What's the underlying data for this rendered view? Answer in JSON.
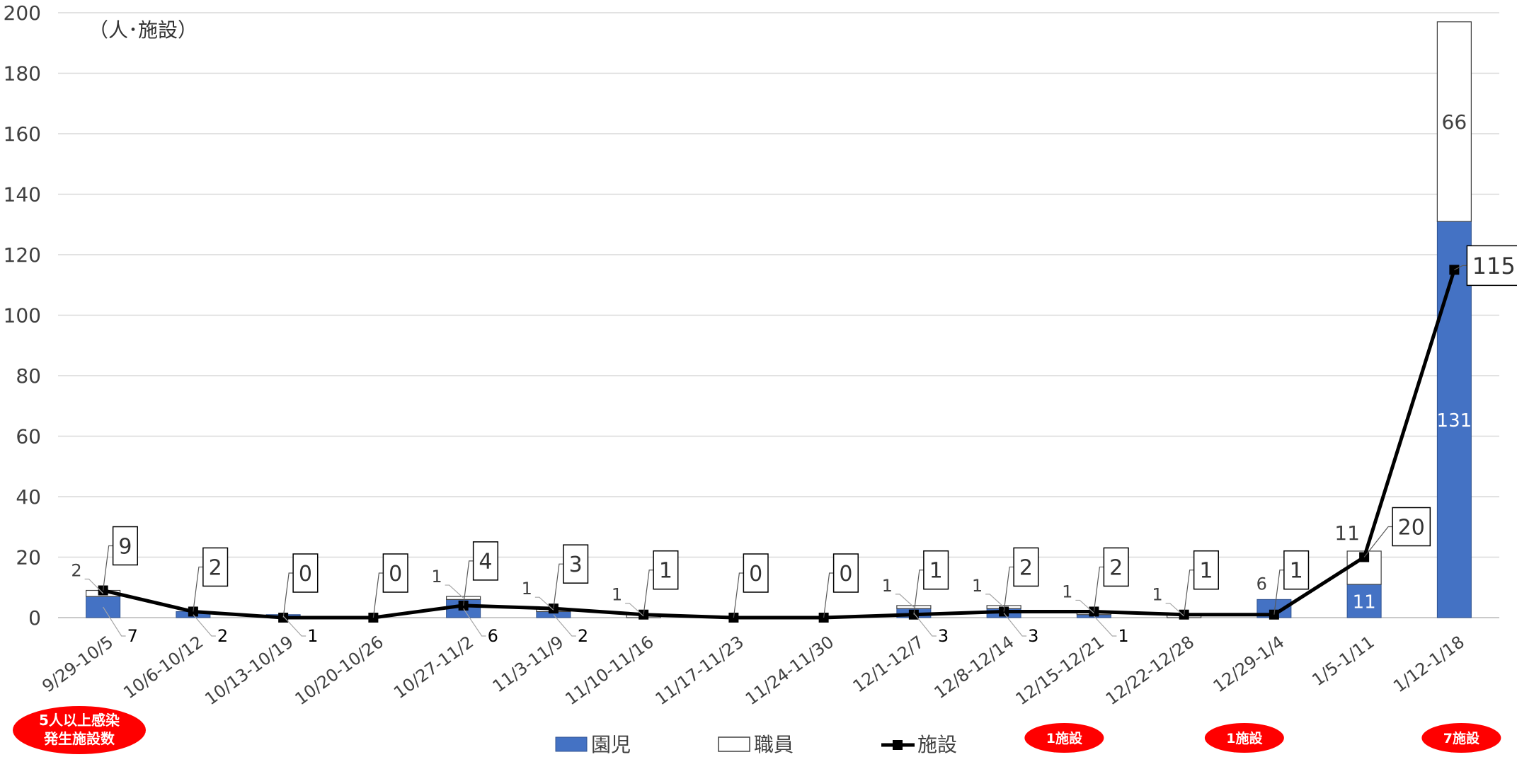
{
  "chart_data": {
    "type": "bar",
    "title": "",
    "unit_label": "（人･施設）",
    "xlabel": "",
    "ylabel": "",
    "ylim": [
      0,
      200
    ],
    "yticks": [
      0,
      20,
      40,
      60,
      80,
      100,
      120,
      140,
      160,
      180,
      200
    ],
    "grid": true,
    "legend_position": "bottom",
    "categories": [
      "9/29-10/5",
      "10/6-10/12",
      "10/13-10/19",
      "10/20-10/26",
      "10/27-11/2",
      "11/3-11/9",
      "11/10-11/16",
      "11/17-11/23",
      "11/24-11/30",
      "12/1-12/7",
      "12/8-12/14",
      "12/15-12/21",
      "12/22-12/28",
      "12/29-1/4",
      "1/5-1/11",
      "1/12-1/18"
    ],
    "series": [
      {
        "name": "園児",
        "type": "stacked-bar",
        "color": "#4472C4",
        "values": [
          7,
          2,
          1,
          0,
          6,
          2,
          0,
          0,
          0,
          3,
          3,
          1,
          0,
          6,
          11,
          131
        ]
      },
      {
        "name": "職員",
        "type": "stacked-bar",
        "color": "#FFFFFF",
        "values": [
          2,
          0,
          0,
          0,
          1,
          1,
          1,
          0,
          0,
          1,
          1,
          1,
          1,
          0,
          11,
          66
        ]
      },
      {
        "name": "施設",
        "type": "line",
        "color": "#000000",
        "values": [
          9,
          2,
          0,
          0,
          4,
          3,
          1,
          0,
          0,
          1,
          2,
          2,
          1,
          1,
          20,
          115
        ]
      }
    ],
    "annotations": {
      "axis_badge": [
        "5人以上感染",
        "発生施設数"
      ],
      "badges": [
        {
          "category": "12/15-12/21",
          "text": "1施設"
        },
        {
          "category": "12/29-1/4",
          "text": "1施設"
        },
        {
          "category": "1/12-1/18",
          "text": "7施設"
        }
      ]
    }
  }
}
